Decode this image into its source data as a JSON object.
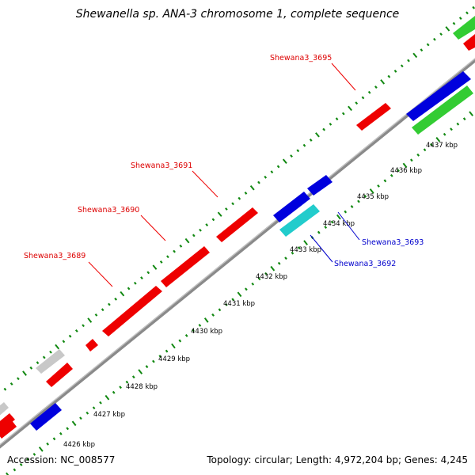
{
  "title": "Shewanella sp. ANA-3 chromosome 1, complete sequence",
  "footer": {
    "accession": "Accession: NC_008577",
    "topology": "Topology: circular; Length: 4,972,204 bp; Genes: 4,245"
  },
  "colors": {
    "forward": "#ee0000",
    "reverse": "#0000dd",
    "green": "#33cc33",
    "cyan": "#22cccc",
    "gray": "#c8c8c8",
    "backbone": "#8a8a8a",
    "ticks": "#118811",
    "forward_label": "#dd0000",
    "reverse_label": "#0000cc"
  },
  "scale": {
    "unit": "kbp",
    "tick_labels": [
      {
        "kbp": 4426,
        "text": "4426 kbp"
      },
      {
        "kbp": 4427,
        "text": "4427 kbp"
      },
      {
        "kbp": 4428,
        "text": "4428 kbp"
      },
      {
        "kbp": 4429,
        "text": "4429 kbp"
      },
      {
        "kbp": 4430,
        "text": "4430 kbp"
      },
      {
        "kbp": 4431,
        "text": "4431 kbp"
      },
      {
        "kbp": 4432,
        "text": "4432 kbp"
      },
      {
        "kbp": 4433,
        "text": "4433 kbp"
      },
      {
        "kbp": 4434,
        "text": "4434 kbp"
      },
      {
        "kbp": 4435,
        "text": "4435 kbp"
      },
      {
        "kbp": 4436,
        "text": "4436 kbp"
      },
      {
        "kbp": 4437,
        "text": "4437 kbp"
      }
    ]
  },
  "gene_labels": {
    "forward": [
      "Shewana3_3689",
      "Shewana3_3690",
      "Shewana3_3691",
      "Shewana3_3695"
    ],
    "reverse": [
      "Shewana3_3692",
      "Shewana3_3693"
    ]
  }
}
